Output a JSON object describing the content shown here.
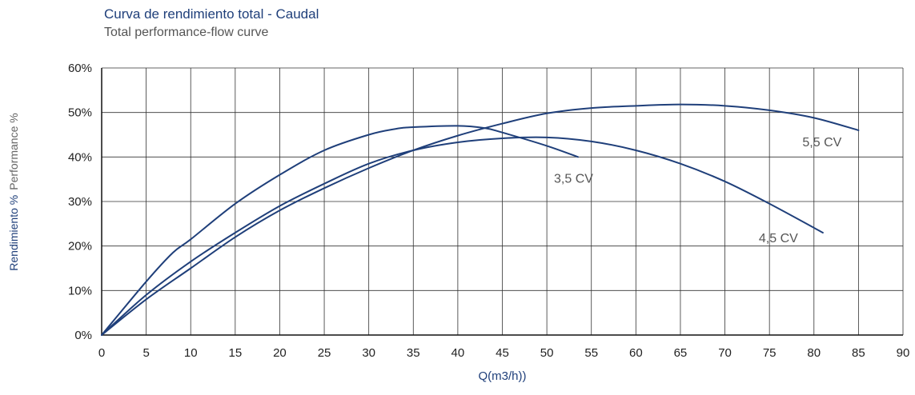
{
  "chart_data": {
    "type": "line",
    "title": "Curva de rendimiento total - Caudal",
    "subtitle": "Total performance-flow curve",
    "xlabel": "Q(m3/h))",
    "ylabel_es": "Rendimiento %",
    "ylabel_en": "Performance  %",
    "xlim": [
      0,
      90
    ],
    "ylim": [
      0,
      60
    ],
    "x_ticks": [
      0,
      5,
      10,
      15,
      20,
      25,
      30,
      35,
      40,
      45,
      50,
      55,
      60,
      65,
      70,
      75,
      80,
      85,
      90
    ],
    "y_ticks": [
      0,
      10,
      20,
      30,
      40,
      50,
      60
    ],
    "y_tick_labels": [
      "0%",
      "10%",
      "20%",
      "30%",
      "40%",
      "50%",
      "60%"
    ],
    "grid": true,
    "line_color": "#1f3f7a",
    "series": [
      {
        "name": "3,5 CV",
        "x": [
          0,
          5,
          8,
          10,
          15,
          20,
          25,
          30,
          33,
          35,
          40,
          43,
          45,
          50,
          53.5
        ],
        "y": [
          0,
          12,
          18.5,
          21.5,
          29.5,
          36,
          41.5,
          45,
          46.3,
          46.7,
          47,
          46.5,
          45.5,
          42.5,
          40
        ]
      },
      {
        "name": "4,5 CV",
        "x": [
          0,
          5,
          10,
          15,
          20,
          25,
          30,
          35,
          40,
          45,
          50,
          55,
          60,
          65,
          70,
          75,
          81
        ],
        "y": [
          0,
          9,
          16.5,
          23,
          29,
          34,
          38.5,
          41.5,
          43.3,
          44.2,
          44.4,
          43.5,
          41.5,
          38.5,
          34.5,
          29.5,
          23
        ]
      },
      {
        "name": "5,5 CV",
        "x": [
          0,
          5,
          10,
          15,
          20,
          25,
          30,
          35,
          40,
          45,
          50,
          55,
          60,
          65,
          70,
          75,
          80,
          85
        ],
        "y": [
          0,
          8,
          15,
          22,
          28,
          33,
          37.5,
          41.5,
          44.8,
          47.5,
          49.8,
          51,
          51.5,
          51.8,
          51.5,
          50.5,
          48.8,
          46
        ]
      }
    ]
  }
}
